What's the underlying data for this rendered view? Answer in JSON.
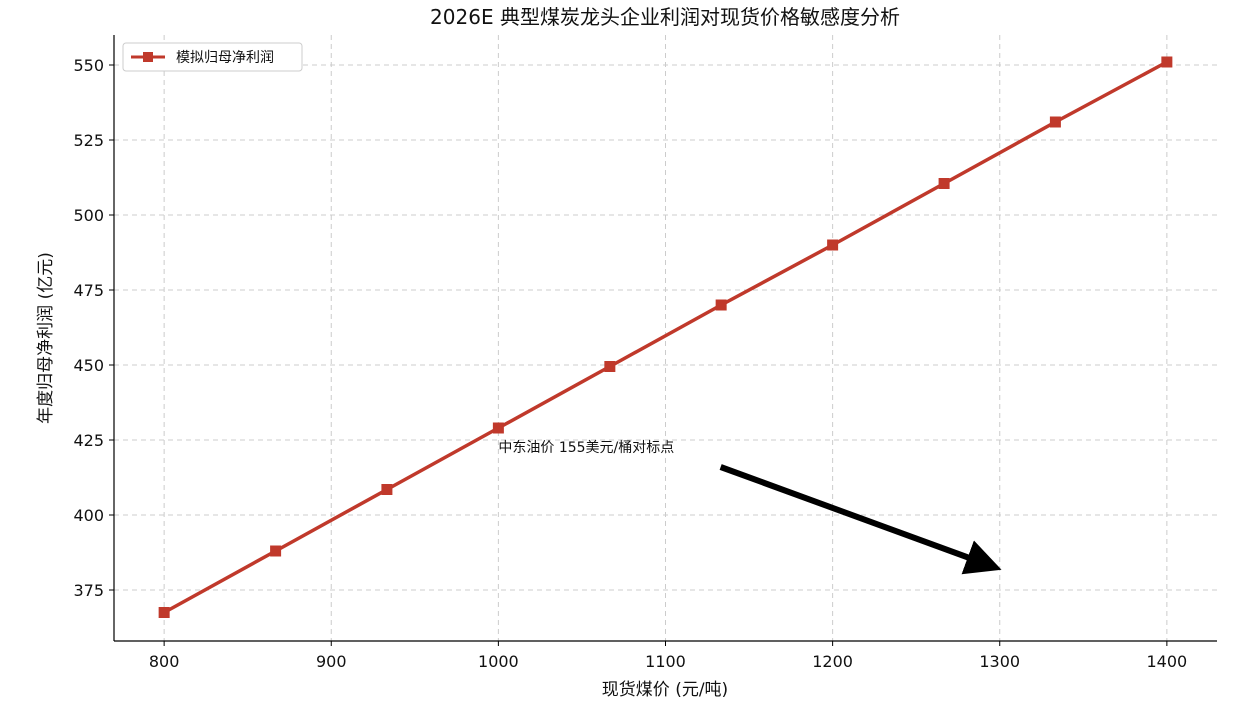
{
  "chart_data": {
    "type": "line",
    "title": "2026E 典型煤炭龙头企业利润对现货价格敏感度分析",
    "xlabel": "现货煤价 (元/吨)",
    "ylabel": "年度归母净利润 (亿元)",
    "xlim": [
      770,
      1430
    ],
    "ylim": [
      358,
      560
    ],
    "xticks": [
      800,
      900,
      1000,
      1100,
      1200,
      1300,
      1400
    ],
    "yticks": [
      375,
      400,
      425,
      450,
      475,
      500,
      525,
      550
    ],
    "grid": true,
    "legend_position": "top-left",
    "series": [
      {
        "name": "模拟归母净利润",
        "color": "#c0392b",
        "marker": "square",
        "x": [
          800,
          866.7,
          933.3,
          1000,
          1066.7,
          1133.3,
          1200,
          1266.7,
          1333.3,
          1400
        ],
        "y": [
          367.5,
          388,
          408.5,
          429,
          449.5,
          470,
          490,
          510.5,
          531,
          551
        ]
      }
    ],
    "annotation": {
      "text": "中东油价 155美元/桶对标点",
      "text_x": 1000,
      "text_y": 421,
      "arrow_from": [
        1133,
        416
      ],
      "arrow_to": [
        1295,
        383
      ]
    }
  }
}
